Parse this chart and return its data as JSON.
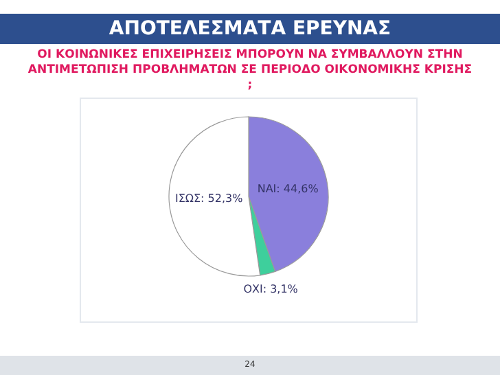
{
  "chart_data": {
    "type": "pie",
    "title": "ΑΠΟΤΕΛΕΣΜΑΤΑ ΕΡΕΥΝΑΣ",
    "subtitle": "ΟΙ ΚΟΙΝΩΝΙΚΕΣ ΕΠΙΧΕΙΡΗΣΕΙΣ ΜΠΟΡΟΥΝ ΝΑ ΣΥΜΒΑΛΛΟΥΝ ΣΤΗΝ ΑΝΤΙΜΕΤΩΠΙΣΗ ΠΡΟΒΛΗΜΑΤΩΝ ΣΕ ΠΕΡΙΟΔΟ ΟΙΚΟΝΟΜΙΚΗΣ ΚΡΙΣΗΣ ;",
    "categories": [
      "ΝΑΙ",
      "ΟΧΙ",
      "ΙΣΩΣ"
    ],
    "values": [
      44.6,
      3.1,
      52.3
    ],
    "value_labels": [
      "44,6%",
      "3,1%",
      "52,3%"
    ],
    "colors": [
      "#8a7fdc",
      "#3ecf9c",
      "#ffffff"
    ],
    "annotations": [
      "24"
    ],
    "legend": false
  }
}
